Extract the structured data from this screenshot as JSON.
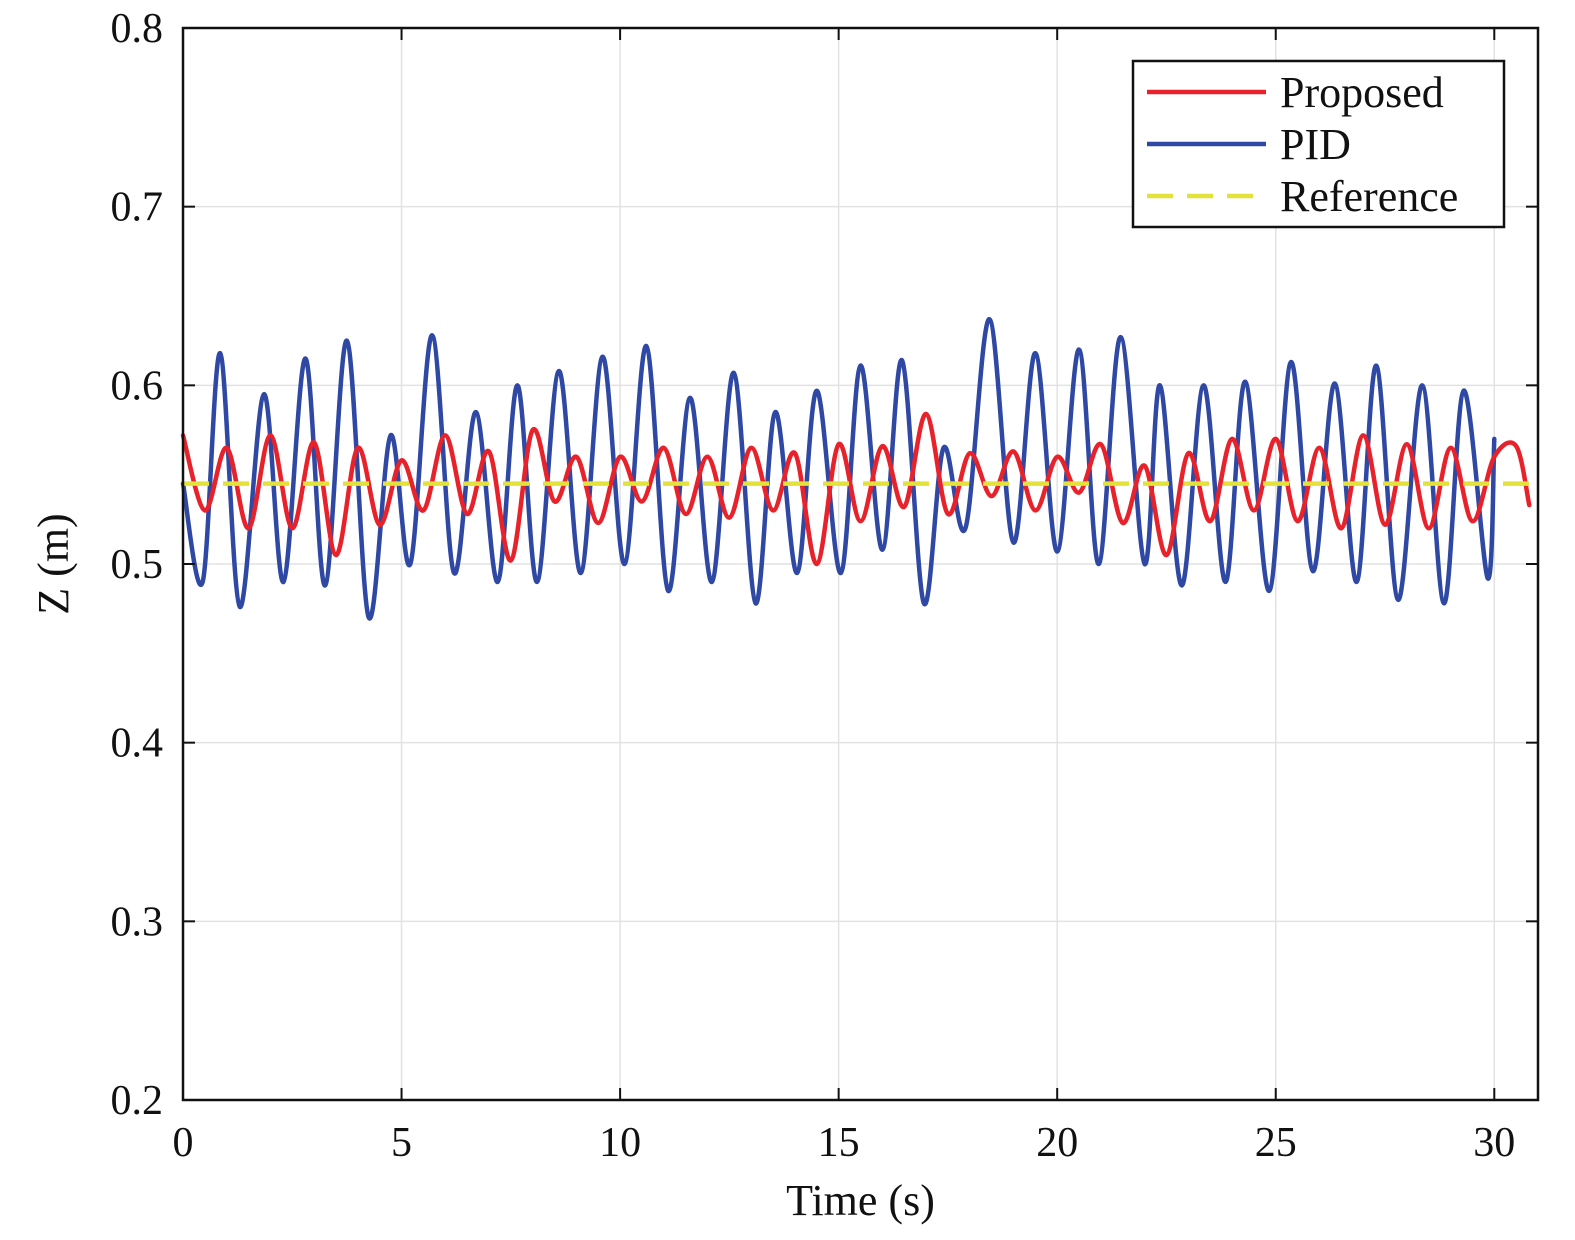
{
  "chart_data": {
    "type": "line",
    "title": "",
    "xlabel": "Time (s)",
    "ylabel": "Z (m)",
    "xlim": [
      0,
      31
    ],
    "ylim": [
      0.2,
      0.8
    ],
    "x_ticks": [
      "0",
      "5",
      "10",
      "15",
      "20",
      "25",
      "30"
    ],
    "y_ticks": [
      "0.2",
      "0.3",
      "0.4",
      "0.5",
      "0.6",
      "0.7",
      "0.8"
    ],
    "grid": true,
    "legend": "top-right",
    "series": [
      {
        "name": "Proposed",
        "color": "#e8222a",
        "style": "solid",
        "x": [
          0,
          0.5,
          1.0,
          1.5,
          2.0,
          2.5,
          3.0,
          3.5,
          4.0,
          4.5,
          5.0,
          5.5,
          6.0,
          6.5,
          7.0,
          7.5,
          8.0,
          8.5,
          9.0,
          9.5,
          10.0,
          10.5,
          11.0,
          11.5,
          12.0,
          12.5,
          13.0,
          13.5,
          14.0,
          14.5,
          15.0,
          15.5,
          16.0,
          16.5,
          17.0,
          17.5,
          18.0,
          18.5,
          19.0,
          19.5,
          20.0,
          20.5,
          21.0,
          21.5,
          22.0,
          22.5,
          23.0,
          23.5,
          24.0,
          24.5,
          25.0,
          25.5,
          26.0,
          26.5,
          27.0,
          27.5,
          28.0,
          28.5,
          29.0,
          29.5,
          30.0,
          30.5,
          30.8
        ],
        "values": [
          0.572,
          0.53,
          0.565,
          0.52,
          0.572,
          0.52,
          0.568,
          0.505,
          0.565,
          0.522,
          0.558,
          0.53,
          0.572,
          0.528,
          0.563,
          0.502,
          0.575,
          0.535,
          0.56,
          0.523,
          0.56,
          0.535,
          0.565,
          0.528,
          0.56,
          0.526,
          0.565,
          0.53,
          0.562,
          0.5,
          0.567,
          0.524,
          0.566,
          0.532,
          0.584,
          0.528,
          0.562,
          0.538,
          0.563,
          0.53,
          0.56,
          0.54,
          0.567,
          0.523,
          0.555,
          0.505,
          0.562,
          0.524,
          0.57,
          0.53,
          0.57,
          0.524,
          0.565,
          0.52,
          0.572,
          0.522,
          0.567,
          0.52,
          0.565,
          0.524,
          0.56,
          0.566,
          0.533
        ]
      },
      {
        "name": "PID",
        "color": "#2e48a3",
        "style": "solid",
        "x": [
          0,
          0.45,
          0.85,
          1.3,
          1.85,
          2.3,
          2.8,
          3.25,
          3.75,
          4.25,
          4.75,
          5.2,
          5.7,
          6.2,
          6.7,
          7.2,
          7.65,
          8.1,
          8.6,
          9.1,
          9.6,
          10.1,
          10.6,
          11.1,
          11.6,
          12.1,
          12.6,
          13.1,
          13.55,
          14.05,
          14.5,
          15.05,
          15.5,
          16.0,
          16.45,
          16.95,
          17.4,
          17.9,
          18.45,
          19.0,
          19.5,
          20.0,
          20.5,
          20.95,
          21.45,
          22.0,
          22.35,
          22.85,
          23.35,
          23.85,
          24.3,
          24.85,
          25.35,
          25.85,
          26.35,
          26.85,
          27.3,
          27.8,
          28.35,
          28.85,
          29.3,
          29.85,
          30.0
        ],
        "values": [
          0.545,
          0.49,
          0.618,
          0.476,
          0.595,
          0.49,
          0.615,
          0.488,
          0.625,
          0.47,
          0.572,
          0.5,
          0.628,
          0.495,
          0.585,
          0.49,
          0.6,
          0.49,
          0.608,
          0.495,
          0.616,
          0.5,
          0.622,
          0.485,
          0.593,
          0.49,
          0.607,
          0.478,
          0.585,
          0.495,
          0.597,
          0.495,
          0.611,
          0.508,
          0.614,
          0.478,
          0.565,
          0.52,
          0.637,
          0.512,
          0.618,
          0.507,
          0.62,
          0.5,
          0.627,
          0.5,
          0.6,
          0.488,
          0.6,
          0.49,
          0.602,
          0.485,
          0.613,
          0.496,
          0.601,
          0.49,
          0.611,
          0.48,
          0.6,
          0.478,
          0.597,
          0.492,
          0.57
        ]
      },
      {
        "name": "Reference",
        "color": "#e2e23a",
        "style": "dashed",
        "x": [
          0,
          31
        ],
        "values": [
          0.545,
          0.545
        ]
      }
    ]
  }
}
